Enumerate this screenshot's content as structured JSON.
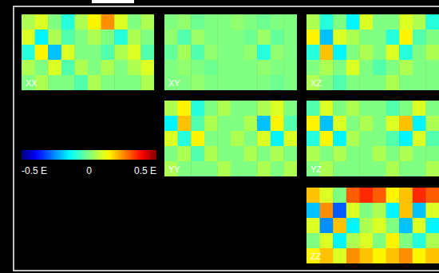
{
  "chart_data": {
    "type": "heatmap",
    "panels": [
      {
        "name": "XX",
        "cells": [
          [
            0.05,
            0.1,
            0.0,
            -0.1,
            0.05,
            0.15,
            0.25,
            0.1,
            0.0,
            0.05
          ],
          [
            0.1,
            -0.15,
            0.05,
            -0.05,
            0.0,
            0.05,
            0.0,
            -0.1,
            0.05,
            0.0
          ],
          [
            -0.1,
            0.15,
            -0.2,
            0.1,
            0.0,
            0.0,
            -0.05,
            0.05,
            0.1,
            -0.05
          ],
          [
            0.05,
            0.0,
            0.1,
            -0.05,
            0.05,
            0.0,
            0.05,
            0.0,
            0.05,
            0.1
          ],
          [
            0.0,
            0.05,
            0.0,
            0.0,
            -0.05,
            0.05,
            0.0,
            0.0,
            0.0,
            0.05
          ]
        ]
      },
      {
        "name": "XY",
        "cells": [
          [
            0.0,
            0.02,
            -0.02,
            0.0,
            0.0,
            0.02,
            0.0,
            -0.02,
            0.0,
            0.0
          ],
          [
            0.02,
            -0.05,
            0.03,
            0.0,
            0.0,
            0.0,
            -0.02,
            0.03,
            -0.03,
            0.0
          ],
          [
            -0.03,
            0.04,
            -0.05,
            0.02,
            0.0,
            0.0,
            0.02,
            -0.1,
            0.02,
            0.0
          ],
          [
            0.0,
            0.02,
            0.0,
            -0.02,
            0.0,
            0.0,
            0.0,
            0.02,
            0.0,
            0.0
          ],
          [
            0.0,
            0.0,
            0.02,
            0.0,
            0.0,
            0.0,
            0.0,
            0.0,
            -0.02,
            0.0
          ]
        ]
      },
      {
        "name": "XZ",
        "cells": [
          [
            0.05,
            -0.1,
            0.0,
            -0.15,
            0.1,
            0.0,
            0.0,
            0.1,
            0.05,
            -0.1
          ],
          [
            0.15,
            -0.2,
            0.1,
            0.05,
            0.0,
            0.0,
            -0.1,
            0.15,
            -0.05,
            0.0
          ],
          [
            -0.1,
            0.2,
            -0.15,
            0.0,
            0.05,
            0.0,
            0.1,
            -0.1,
            0.0,
            0.05
          ],
          [
            0.0,
            0.05,
            0.0,
            0.1,
            0.0,
            -0.05,
            0.0,
            0.05,
            0.0,
            0.0
          ],
          [
            0.05,
            0.0,
            -0.05,
            0.0,
            0.0,
            0.0,
            0.05,
            0.0,
            0.0,
            0.0
          ]
        ]
      },
      {
        "name": "YY",
        "cells": [
          [
            0.05,
            0.15,
            -0.1,
            0.0,
            0.05,
            0.0,
            0.0,
            0.05,
            0.1,
            0.0
          ],
          [
            -0.15,
            0.2,
            -0.05,
            0.05,
            0.0,
            0.0,
            0.05,
            -0.2,
            0.15,
            -0.05
          ],
          [
            0.1,
            -0.1,
            0.15,
            0.0,
            0.0,
            0.05,
            0.0,
            0.1,
            -0.15,
            0.1
          ],
          [
            0.0,
            0.05,
            -0.05,
            0.05,
            0.0,
            0.0,
            0.05,
            0.0,
            0.05,
            0.0
          ],
          [
            0.05,
            0.0,
            0.0,
            0.0,
            0.05,
            0.0,
            0.0,
            0.05,
            0.0,
            0.05
          ]
        ]
      },
      {
        "name": "YZ",
        "cells": [
          [
            -0.05,
            0.1,
            0.0,
            0.05,
            0.0,
            0.0,
            -0.05,
            0.0,
            0.1,
            0.0
          ],
          [
            0.15,
            -0.2,
            0.1,
            0.0,
            0.05,
            0.0,
            0.1,
            0.2,
            -0.15,
            0.05
          ],
          [
            -0.1,
            0.15,
            -0.15,
            0.05,
            0.0,
            0.0,
            -0.05,
            -0.15,
            0.1,
            -0.05
          ],
          [
            0.05,
            0.0,
            0.05,
            0.0,
            0.0,
            0.05,
            0.0,
            0.05,
            0.0,
            0.0
          ],
          [
            0.0,
            0.05,
            0.0,
            0.0,
            0.0,
            0.0,
            0.05,
            0.0,
            0.0,
            0.05
          ]
        ]
      },
      {
        "name": "ZZ",
        "cells": [
          [
            0.2,
            0.1,
            0.0,
            0.3,
            0.35,
            0.3,
            0.15,
            0.2,
            0.35,
            0.3
          ],
          [
            -0.2,
            0.25,
            -0.3,
            0.1,
            0.0,
            0.05,
            -0.15,
            0.2,
            -0.2,
            0.1
          ],
          [
            0.1,
            -0.25,
            0.2,
            -0.15,
            0.05,
            0.1,
            0.0,
            -0.2,
            0.1,
            -0.15
          ],
          [
            0.0,
            0.1,
            -0.15,
            0.05,
            0.1,
            0.0,
            0.15,
            0.0,
            -0.1,
            0.05
          ],
          [
            0.15,
            0.2,
            0.1,
            0.25,
            0.2,
            0.15,
            0.2,
            0.25,
            0.15,
            0.2
          ]
        ]
      }
    ],
    "colorbar": {
      "range": [
        -0.5,
        0.5
      ],
      "ticks": [
        {
          "value": -0.5,
          "label": "-0.5 E"
        },
        {
          "value": 0,
          "label": "0"
        },
        {
          "value": 0.5,
          "label": "0.5 E"
        }
      ]
    }
  }
}
